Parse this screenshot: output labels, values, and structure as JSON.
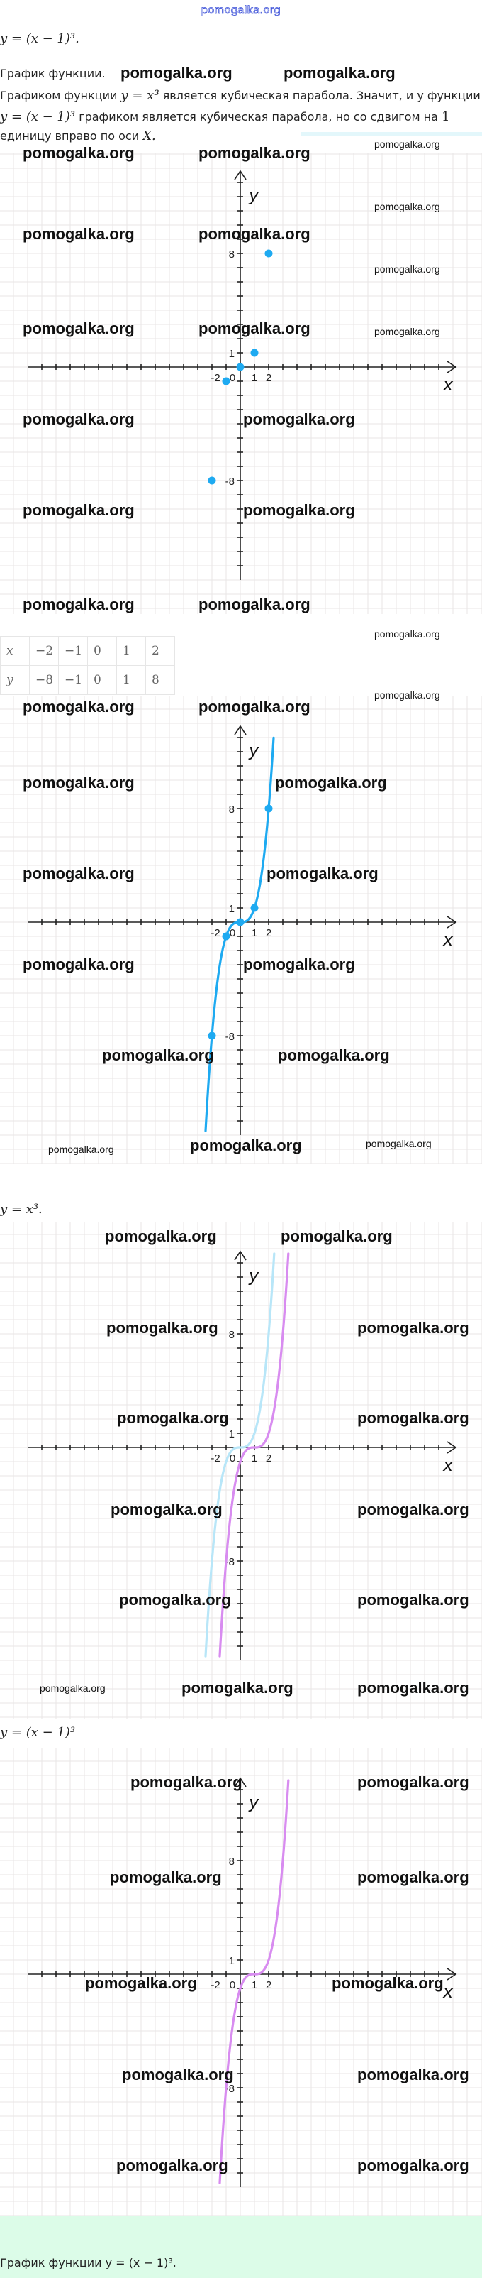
{
  "logo": "pomogalka.org",
  "watermark": "pomogalka.org",
  "intro": {
    "equation": "y = (x − 1)³.",
    "heading": "График функции.",
    "para_line1_a": "Графиком функции",
    "para_line1_eq": "y = x³",
    "para_line1_b": "является кубическая парабола. Значит, и у функции",
    "para_line2_eq": "y = (x − 1)³",
    "para_line2_b": "графиком является кубическая парабола, но со сдвигом на",
    "para_line2_num": "1",
    "para_line3_a": "единицу вправо по оси",
    "para_line3_var": "X."
  },
  "table": {
    "rows": [
      {
        "label": "x",
        "values": [
          "−2",
          "−1",
          "0",
          "1",
          "2"
        ]
      },
      {
        "label": "y",
        "values": [
          "−8",
          "−1",
          "0",
          "1",
          "8"
        ]
      }
    ]
  },
  "graph3_title": "y = x³.",
  "graph4_title": "y = (x − 1)³",
  "footer_text": "График функции y = (x − 1)³.",
  "colors": {
    "blue": "#1eaaf1",
    "light_blue": "#b8e6f8",
    "purple": "#d88cf0",
    "green_band": "#dcfce8",
    "logo": "#3a4fd8"
  },
  "chart_data": [
    {
      "type": "scatter",
      "xlabel": "x",
      "ylabel": "y",
      "x_tick_labels": [
        "-2",
        "0",
        "1",
        "2"
      ],
      "y_tick_labels": [
        "8",
        "1",
        "-8"
      ],
      "grid": true,
      "points": [
        [
          -2,
          -8
        ],
        [
          -1,
          -1
        ],
        [
          0,
          0
        ],
        [
          1,
          1
        ],
        [
          2,
          8
        ]
      ],
      "point_color": "#1eaaf1"
    },
    {
      "type": "line",
      "xlabel": "x",
      "ylabel": "y",
      "x_tick_labels": [
        "-2",
        "0",
        "1",
        "2"
      ],
      "y_tick_labels": [
        "8",
        "1",
        "-8"
      ],
      "grid": true,
      "series": [
        {
          "function": "x^3",
          "x_range": [
            -2.45,
            2.35
          ],
          "color": "#1eaaf1"
        }
      ],
      "points": [
        [
          -2,
          -8
        ],
        [
          -1,
          -1
        ],
        [
          0,
          0
        ],
        [
          1,
          1
        ],
        [
          2,
          8
        ]
      ],
      "point_color": "#1eaaf1"
    },
    {
      "type": "line",
      "xlabel": "x",
      "ylabel": "y",
      "x_tick_labels": [
        "-2",
        "0",
        "1",
        "2"
      ],
      "y_tick_labels": [
        "8",
        "1",
        "-8"
      ],
      "grid": true,
      "series": [
        {
          "function": "x^3",
          "x_range": [
            -2.45,
            2.4
          ],
          "color": "#b8e6f8"
        },
        {
          "function": "(x-1)^3",
          "x_range": [
            -1.45,
            3.4
          ],
          "color": "#d88cf0"
        }
      ]
    },
    {
      "type": "line",
      "xlabel": "x",
      "ylabel": "y",
      "x_tick_labels": [
        "-2",
        "0",
        "1",
        "2"
      ],
      "y_tick_labels": [
        "8",
        "1",
        "-8"
      ],
      "grid": true,
      "series": [
        {
          "function": "(x-1)^3",
          "x_range": [
            -1.45,
            3.4
          ],
          "color": "#d88cf0"
        }
      ]
    }
  ]
}
